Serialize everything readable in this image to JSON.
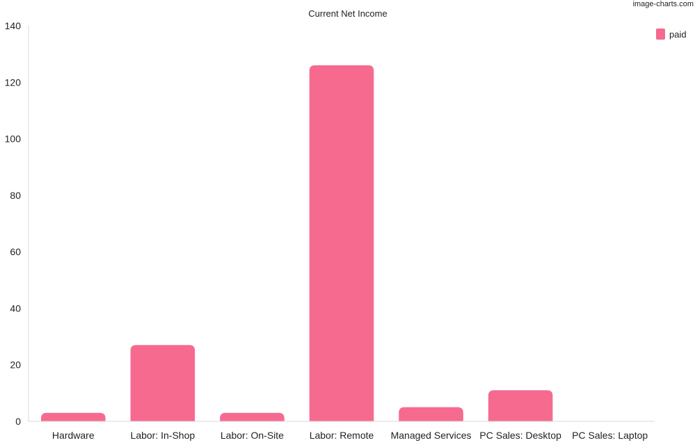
{
  "watermark": "image-charts.com",
  "chart_data": {
    "type": "bar",
    "title": "Current Net Income",
    "xlabel": "",
    "ylabel": "",
    "ylim": [
      0,
      140
    ],
    "yticks": [
      0,
      20,
      40,
      60,
      80,
      100,
      120,
      140
    ],
    "categories": [
      "Hardware",
      "Labor: In-Shop",
      "Labor: On-Site",
      "Labor: Remote",
      "Managed Services",
      "PC Sales: Desktop",
      "PC Sales: Laptop"
    ],
    "series": [
      {
        "name": "paid",
        "color": "#f66a90",
        "values": [
          3,
          27,
          3,
          126,
          5,
          11,
          0
        ]
      }
    ],
    "legend": "top-right",
    "grid": false
  }
}
